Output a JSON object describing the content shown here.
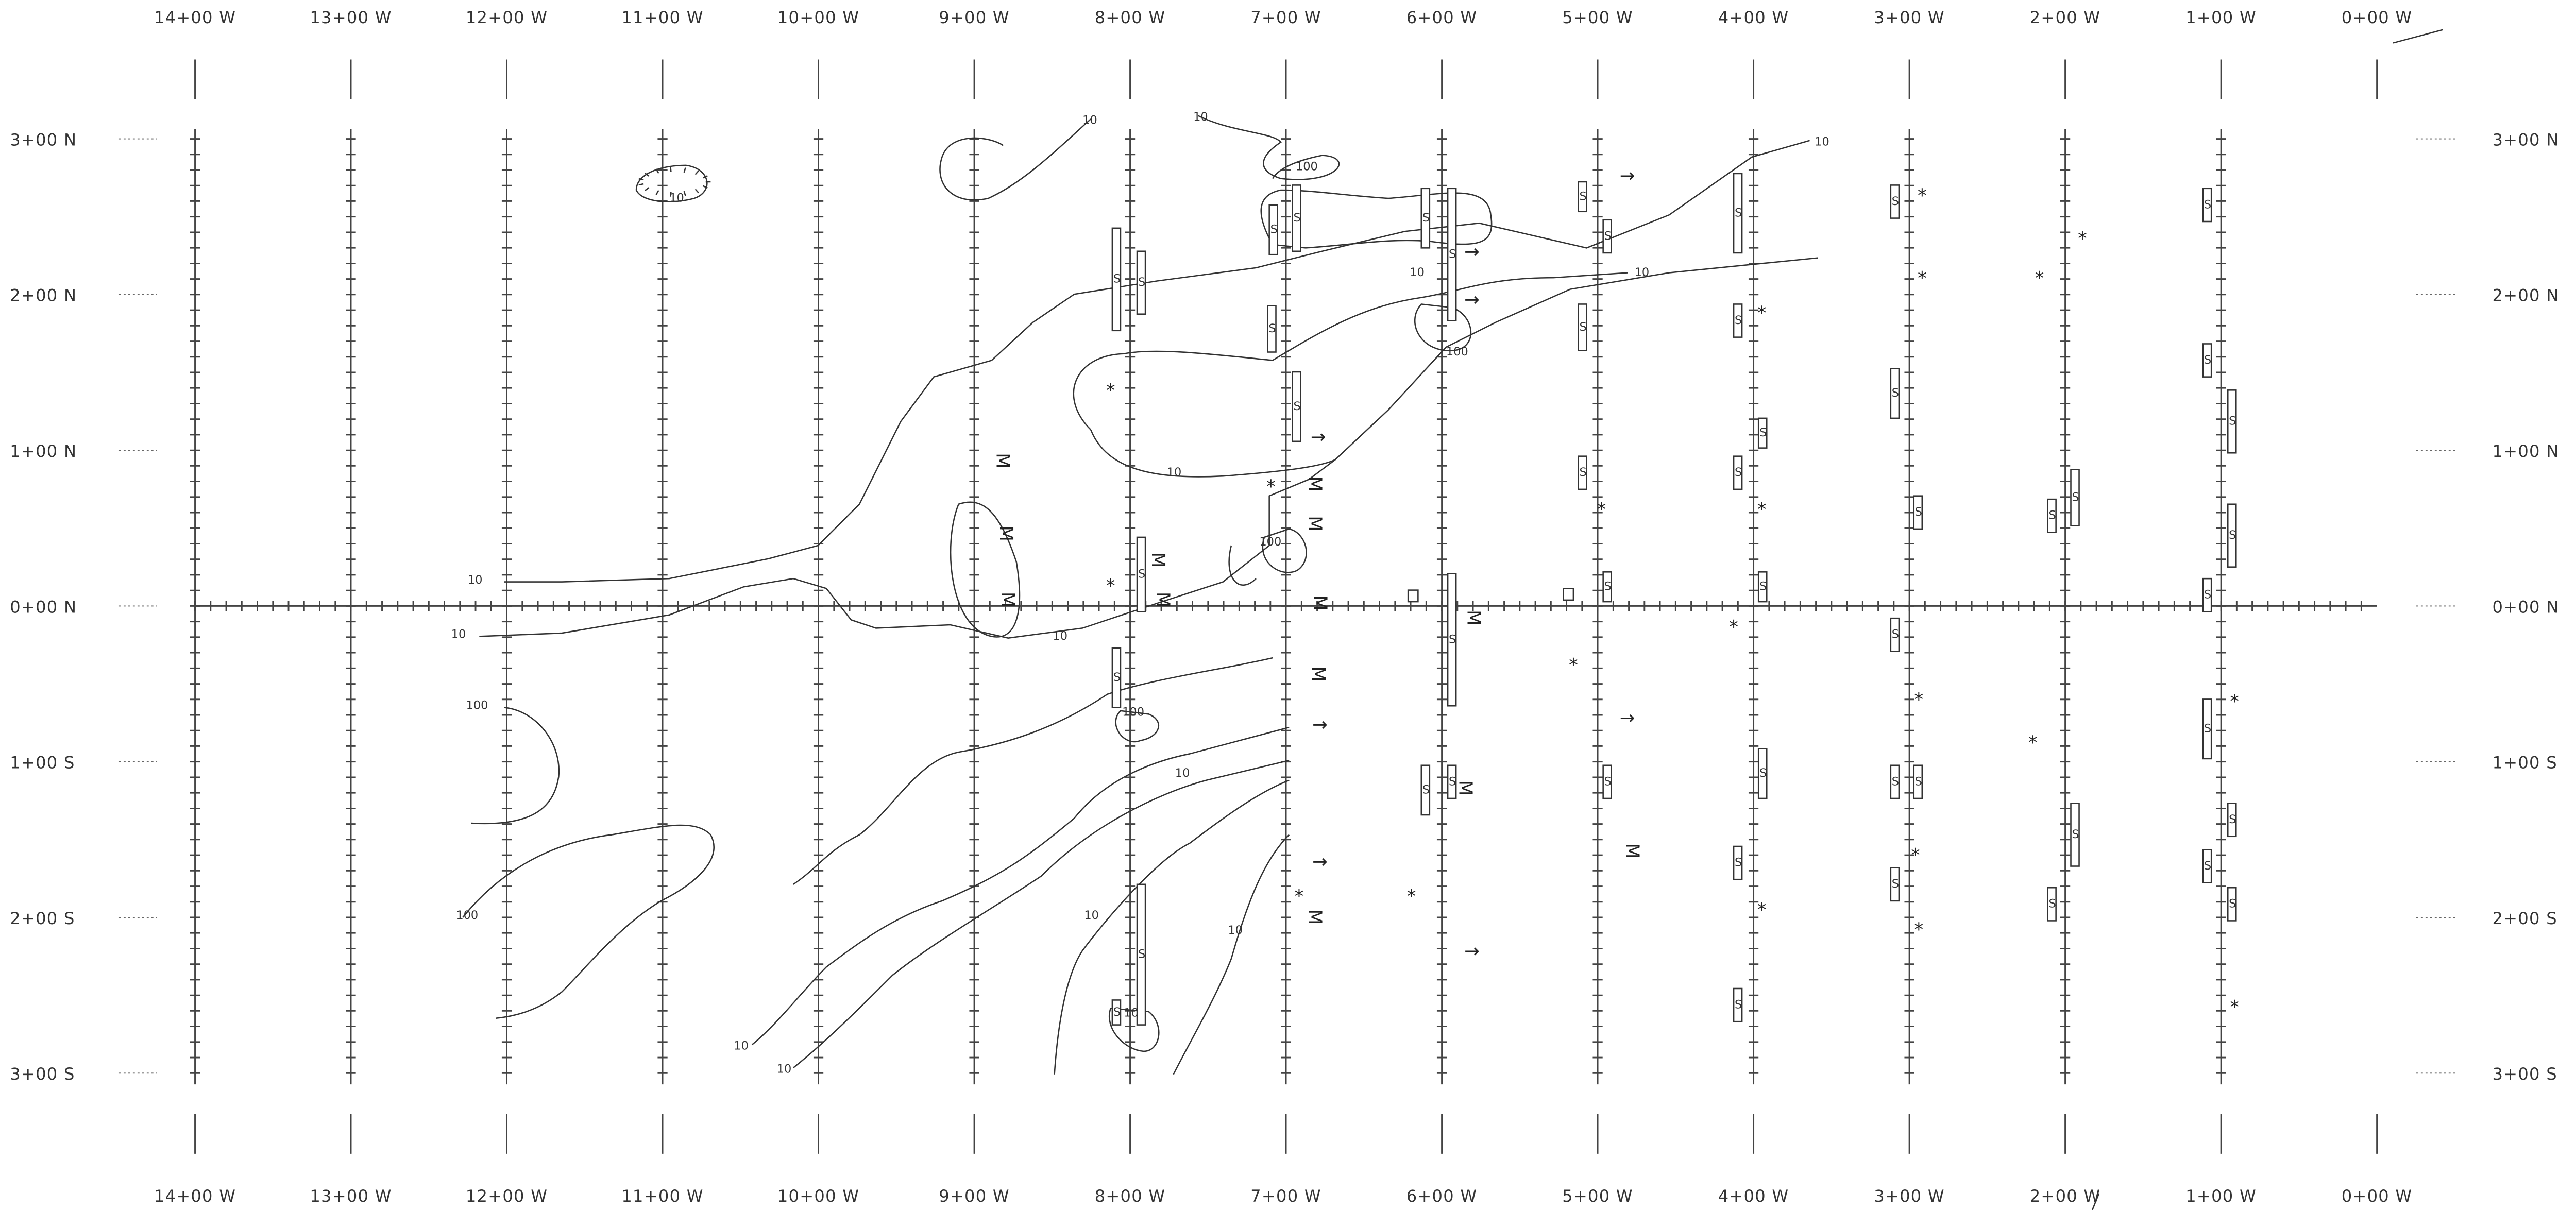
{
  "map": {
    "x_labels": [
      "14+00 W",
      "13+00 W",
      "12+00 W",
      "11+00 W",
      "10+00 W",
      "9+00 W",
      "8+00 W",
      "7+00 W",
      "6+00 W",
      "5+00 W",
      "4+00 W",
      "3+00 W",
      "2+00 W",
      "1+00 W",
      "0+00 W"
    ],
    "y_labels": [
      "3+00 N",
      "2+00 N",
      "1+00 N",
      "0+00 N",
      "1+00 S",
      "2+00 S",
      "3+00 S"
    ],
    "contour_labels": {
      "ten": "10",
      "hundred": "100"
    },
    "symbols": {
      "mag": "M",
      "sulphide": "S",
      "star": "*",
      "arrow": "→"
    }
  }
}
